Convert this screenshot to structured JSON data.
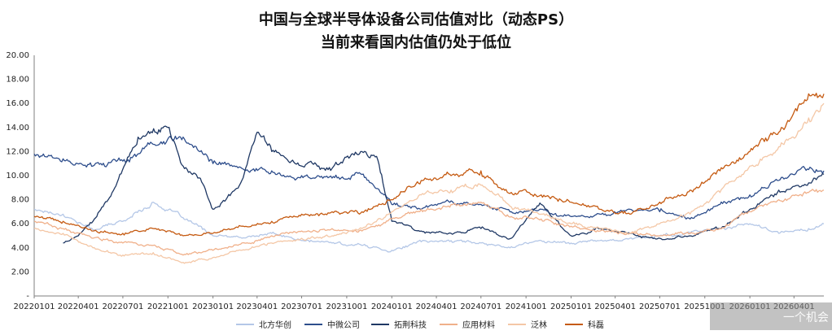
{
  "chart_data": {
    "type": "line",
    "title": "中国与全球半导体设备公司估值对比（动态PS）",
    "subtitle": "当前来看国内估值仍处于低位",
    "ylim": [
      0,
      20
    ],
    "yticks": [
      "20.00",
      "18.00",
      "16.00",
      "14.00",
      "12.00",
      "10.00",
      "8.00",
      "6.00",
      "4.00",
      "2.00",
      "-"
    ],
    "x_ticks": [
      "20220101",
      "20220401",
      "20220701",
      "20221001",
      "20230101",
      "20230401",
      "20230701",
      "20231001",
      "20240101",
      "20240401",
      "20240701",
      "20241001",
      "20250101",
      "20250401",
      "20250701",
      "20251001",
      "20260101",
      "20260401"
    ],
    "x_range": [
      "20220101",
      "20260601"
    ],
    "grid": false,
    "legend_position": "bottom",
    "series": [
      {
        "name": "北方华创",
        "color": "#b4c7e7",
        "x": [
          "20220101",
          "20220301",
          "20220501",
          "20220701",
          "20220901",
          "20221101",
          "20230101",
          "20230301",
          "20230501",
          "20230701",
          "20230901",
          "20231101",
          "20240101",
          "20240301",
          "20240501",
          "20240701",
          "20240901",
          "20241101",
          "20250101",
          "20250301",
          "20250501",
          "20250701",
          "20250901",
          "20251101",
          "20260101",
          "20260301",
          "20260501",
          "20260601"
        ],
        "values": [
          7.2,
          6.8,
          5.5,
          6.2,
          7.8,
          6.5,
          5.0,
          4.8,
          5.2,
          4.6,
          4.4,
          4.2,
          3.8,
          4.5,
          4.6,
          4.4,
          4.1,
          4.6,
          4.4,
          4.6,
          4.8,
          5.0,
          5.2,
          5.6,
          6.0,
          5.2,
          5.6,
          6.0
        ]
      },
      {
        "name": "中微公司",
        "color": "#2e4e8c",
        "x": [
          "20220101",
          "20220301",
          "20220501",
          "20220701",
          "20220901",
          "20221101",
          "20230101",
          "20230301",
          "20230501",
          "20230701",
          "20230901",
          "20231101",
          "20240101",
          "20240301",
          "20240501",
          "20240701",
          "20240901",
          "20241101",
          "20250101",
          "20250301",
          "20250501",
          "20250701",
          "20250901",
          "20251101",
          "20260101",
          "20260301",
          "20260501",
          "20260601"
        ],
        "values": [
          11.8,
          11.4,
          10.8,
          11.2,
          12.6,
          13.2,
          11.0,
          10.6,
          10.4,
          10.0,
          9.8,
          10.1,
          7.6,
          7.2,
          7.9,
          7.6,
          7.0,
          7.2,
          6.6,
          6.8,
          7.2,
          7.0,
          6.4,
          7.6,
          8.4,
          9.6,
          10.5,
          10.4
        ]
      },
      {
        "name": "拓荆科技",
        "color": "#1f3864",
        "x": [
          "20220301",
          "20220401",
          "20220501",
          "20220601",
          "20220801",
          "20221001",
          "20221101",
          "20221201",
          "20230101",
          "20230301",
          "20230401",
          "20230501",
          "20230701",
          "20230901",
          "20231101",
          "20231201",
          "20240101",
          "20240301",
          "20240501",
          "20240701",
          "20240901",
          "20241101",
          "20250101",
          "20250301",
          "20250501",
          "20250701",
          "20250901",
          "20251101",
          "20260101",
          "20260301",
          "20260501",
          "20260601"
        ],
        "values": [
          4.4,
          5.0,
          6.2,
          8.0,
          13.2,
          14.0,
          10.8,
          9.8,
          7.2,
          9.6,
          13.6,
          12.0,
          10.8,
          10.6,
          12.0,
          11.6,
          6.2,
          5.4,
          5.2,
          5.6,
          4.8,
          7.6,
          5.0,
          5.6,
          5.2,
          4.8,
          5.0,
          5.6,
          7.2,
          8.8,
          9.4,
          10.1
        ]
      },
      {
        "name": "应用材料",
        "color": "#f0b08a",
        "x": [
          "20220101",
          "20220301",
          "20220501",
          "20220701",
          "20220901",
          "20221101",
          "20230101",
          "20230301",
          "20230501",
          "20230701",
          "20230901",
          "20231101",
          "20240101",
          "20240301",
          "20240501",
          "20240701",
          "20240901",
          "20241101",
          "20250101",
          "20250301",
          "20250501",
          "20250701",
          "20250901",
          "20251101",
          "20260101",
          "20260301",
          "20260501",
          "20260601"
        ],
        "values": [
          6.2,
          5.6,
          4.8,
          4.4,
          4.2,
          3.4,
          3.8,
          4.4,
          5.0,
          5.4,
          5.6,
          5.4,
          6.4,
          7.2,
          7.6,
          7.8,
          6.6,
          6.4,
          5.8,
          5.4,
          5.2,
          5.0,
          5.2,
          5.6,
          7.0,
          8.0,
          8.6,
          8.8
        ]
      },
      {
        "name": "泛林",
        "color": "#f4c7a6",
        "x": [
          "20220101",
          "20220301",
          "20220501",
          "20220701",
          "20220901",
          "20221101",
          "20230101",
          "20230301",
          "20230501",
          "20230701",
          "20230901",
          "20231101",
          "20240101",
          "20240301",
          "20240501",
          "20240701",
          "20240901",
          "20241101",
          "20250101",
          "20250301",
          "20250501",
          "20250701",
          "20250901",
          "20251101",
          "20260101",
          "20260301",
          "20260501",
          "20260601"
        ],
        "values": [
          5.6,
          5.2,
          4.0,
          3.4,
          3.6,
          2.8,
          3.2,
          3.8,
          4.4,
          4.8,
          5.0,
          5.6,
          7.0,
          8.4,
          8.8,
          9.2,
          7.4,
          6.8,
          6.0,
          5.6,
          5.2,
          6.0,
          6.8,
          8.6,
          10.8,
          12.4,
          14.8,
          16.0
        ]
      },
      {
        "name": "科磊",
        "color": "#c55a11",
        "x": [
          "20220101",
          "20220301",
          "20220501",
          "20220701",
          "20220901",
          "20221101",
          "20230101",
          "20230301",
          "20230501",
          "20230701",
          "20230901",
          "20231101",
          "20240101",
          "20240301",
          "20240501",
          "20240701",
          "20240901",
          "20241101",
          "20250101",
          "20250301",
          "20250501",
          "20250701",
          "20250901",
          "20251101",
          "20260101",
          "20260301",
          "20260501",
          "20260601"
        ],
        "values": [
          6.6,
          6.2,
          5.4,
          5.2,
          5.6,
          5.0,
          5.2,
          5.8,
          6.2,
          6.8,
          7.0,
          7.0,
          8.0,
          9.6,
          10.0,
          10.4,
          8.6,
          8.4,
          7.8,
          7.2,
          6.8,
          7.8,
          8.8,
          10.4,
          12.0,
          13.6,
          16.8,
          16.8
        ]
      }
    ]
  },
  "overlay": {
    "watermark_text": "一个机会"
  }
}
